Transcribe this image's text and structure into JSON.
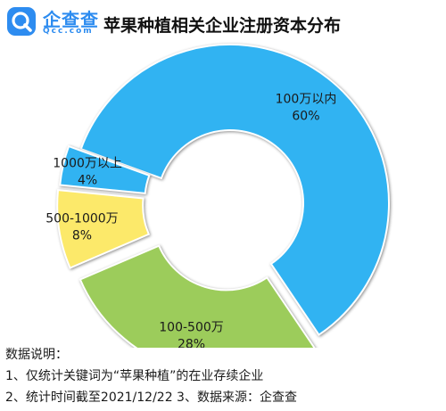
{
  "brand": {
    "name_cn": "企查查",
    "name_en": "Qcc.com",
    "color": "#2d8cf0"
  },
  "chart_data": {
    "type": "pie",
    "title": "苹果种植相关企业注册资本分布",
    "donut": true,
    "exploded": true,
    "slices": [
      {
        "label": "100万以内",
        "value": 60,
        "percent_label": "60%",
        "color": "#31b3f2"
      },
      {
        "label": "100-500万",
        "value": 28,
        "percent_label": "28%",
        "color": "#9ccc5b"
      },
      {
        "label": "500-1000万",
        "value": 8,
        "percent_label": "8%",
        "color": "#fce96a"
      },
      {
        "label": "1000万以上",
        "value": 4,
        "percent_label": "4%",
        "color": "#31b3f2"
      }
    ]
  },
  "notes": {
    "heading": "数据说明：",
    "line1": "1、仅统计关键词为“苹果种植”的在业存续企业",
    "line2": "2、统计时间截至2021/12/22 3、数据来源：企查查"
  }
}
